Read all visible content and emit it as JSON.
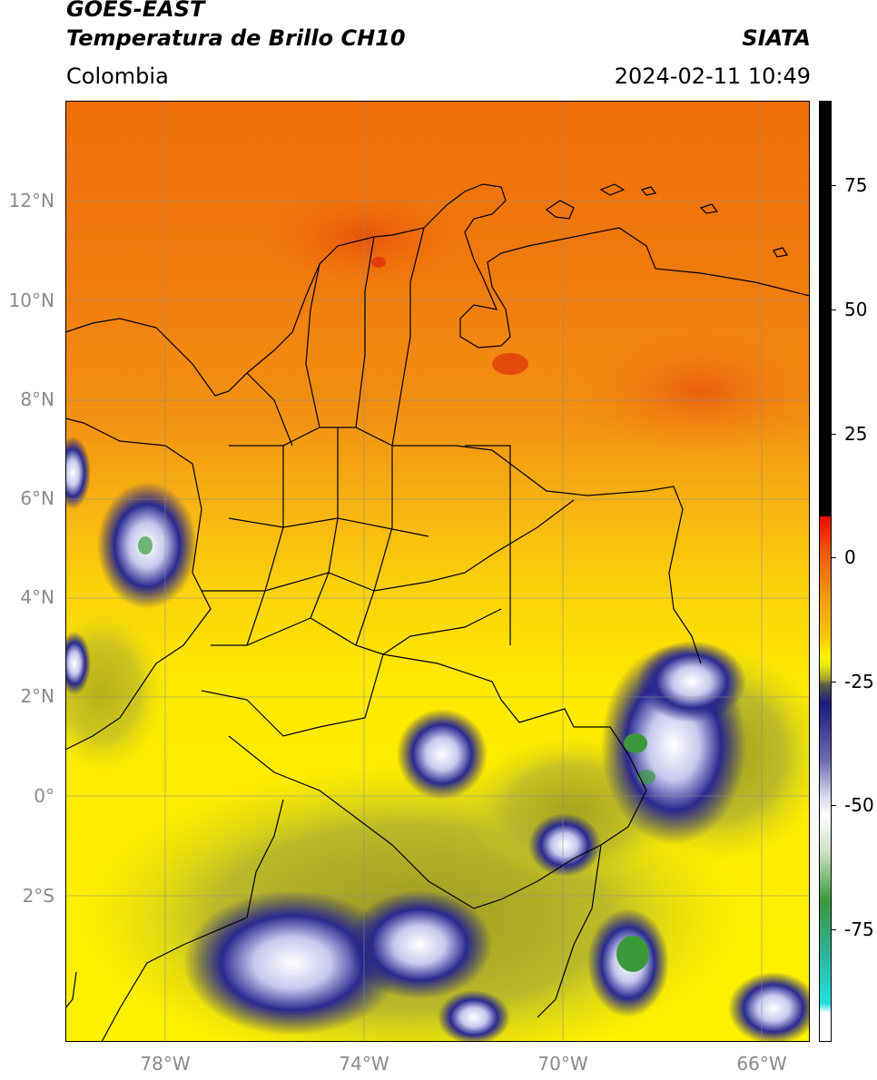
{
  "header": {
    "satellite": "GOES-EAST",
    "product": "Temperatura de Brillo CH10",
    "agency": "SIATA",
    "region": "Colombia",
    "datetime": "2024-02-11 10:49"
  },
  "axes": {
    "lat_labels": [
      "12°N",
      "10°N",
      "8°N",
      "6°N",
      "4°N",
      "2°N",
      "0°",
      "2°S"
    ],
    "lon_labels": [
      "78°W",
      "74°W",
      "70°W",
      "66°W"
    ]
  },
  "colorbar": {
    "labels": [
      "75",
      "50",
      "25",
      "0",
      "-25",
      "-50",
      "-75"
    ],
    "colors": {
      "warm": "#000000",
      "red": "#e8200a",
      "orange": "#f07c0c",
      "yellow": "#ffee00",
      "olive": "#a0a030",
      "navy": "#1a1a80",
      "white": "#ffffff",
      "green": "#3a9a3a",
      "cyan": "#20d8d0"
    }
  }
}
